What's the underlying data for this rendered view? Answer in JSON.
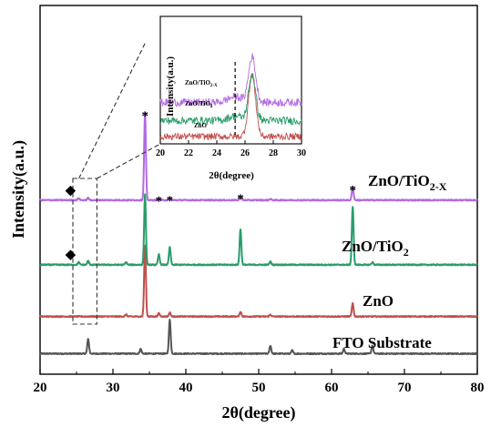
{
  "chart_data": [
    {
      "type": "line",
      "xlabel": "2θ(degree)",
      "ylabel": "Intensity(a.u.)",
      "xlim": [
        20,
        80
      ],
      "xticks": [
        20,
        30,
        40,
        50,
        60,
        70,
        80
      ],
      "grid": false,
      "series": [
        {
          "name": "FTO Substrate",
          "color": "#555555",
          "offset": 0.0,
          "baseline": 1.0,
          "peaks": [
            [
              26.6,
              4.5
            ],
            [
              33.8,
              1.5
            ],
            [
              37.8,
              10.5
            ],
            [
              51.6,
              2.5
            ],
            [
              54.6,
              1.0
            ],
            [
              61.7,
              1.5
            ],
            [
              65.6,
              2.5
            ]
          ]
        },
        {
          "name": "ZnO",
          "color": "#c0504d",
          "offset": 12.0,
          "baseline": 0.5,
          "peaks": [
            [
              31.8,
              0.6
            ],
            [
              34.4,
              22.0
            ],
            [
              36.3,
              1.0
            ],
            [
              37.8,
              1.2
            ],
            [
              47.5,
              1.5
            ],
            [
              51.6,
              0.6
            ],
            [
              62.9,
              4.0
            ]
          ]
        },
        {
          "name": "ZnO/TiO2",
          "color": "#2a9d6a",
          "offset": 28.0,
          "baseline": 0.5,
          "peaks": [
            [
              25.3,
              0.8
            ],
            [
              26.6,
              1.2
            ],
            [
              31.8,
              0.8
            ],
            [
              34.4,
              22.0
            ],
            [
              36.3,
              3.2
            ],
            [
              37.8,
              5.5
            ],
            [
              47.5,
              11.0
            ],
            [
              51.6,
              1.0
            ],
            [
              62.9,
              18.0
            ],
            [
              65.6,
              0.8
            ]
          ]
        },
        {
          "name": "ZnO/TiO2-X",
          "color": "#b36ae2",
          "offset": 48.0,
          "baseline": 0.5,
          "peaks": [
            [
              25.3,
              0.6
            ],
            [
              26.6,
              0.7
            ],
            [
              34.4,
              27.0
            ],
            [
              36.3,
              0.6
            ],
            [
              37.8,
              0.8
            ],
            [
              47.5,
              1.3
            ],
            [
              51.6,
              0.4
            ],
            [
              62.9,
              4.0
            ]
          ]
        }
      ],
      "annotations": [
        {
          "symbol": "◆",
          "x": 25.3,
          "series": "ZnO/TiO2-X"
        },
        {
          "symbol": "◆",
          "x": 25.3,
          "series": "ZnO/TiO2"
        },
        {
          "symbol": "*",
          "x": 34.4,
          "series": "ZnO/TiO2-X"
        },
        {
          "symbol": "*",
          "x": 36.3,
          "series": "ZnO/TiO2-X"
        },
        {
          "symbol": "*",
          "x": 37.8,
          "series": "ZnO/TiO2-X"
        },
        {
          "symbol": "*",
          "x": 47.5,
          "series": "ZnO/TiO2-X"
        },
        {
          "symbol": "*",
          "x": 62.9,
          "series": "ZnO/TiO2-X"
        }
      ],
      "zoom_box_x": [
        24.5,
        27.8
      ]
    },
    {
      "type": "line",
      "xlabel": "2θ(degree)",
      "ylabel": "Intensity(a.u.)",
      "xlim": [
        20,
        30
      ],
      "xticks": [
        20,
        22,
        24,
        26,
        28,
        30
      ],
      "reference_line_x": 25.3,
      "series": [
        {
          "name": "ZnO",
          "color": "#c0504d",
          "offset": 0,
          "peaks": [
            [
              26.5,
              55
            ]
          ],
          "noise": 3
        },
        {
          "name": "ZnO/TiO2",
          "color": "#2a9d6a",
          "offset": 14,
          "peaks": [
            [
              25.3,
              4
            ],
            [
              26.5,
              40
            ]
          ],
          "noise": 3.5
        },
        {
          "name": "ZnO/TiO2-X",
          "color": "#b36ae2",
          "offset": 30,
          "peaks": [
            [
              25.3,
              5
            ],
            [
              26.5,
              40
            ]
          ],
          "noise": 3.5
        }
      ]
    }
  ],
  "labels": {
    "fto": "FTO Substrate",
    "zno": "ZnO",
    "znotio2_main": "ZnO/TiO",
    "znotio2_sub": "2",
    "znotio2x_main": "ZnO/TiO",
    "znotio2x_sub": "2-X",
    "inset_zno": "ZnO",
    "inset_znotio2_main": "ZnO/TiO",
    "inset_znotio2_sub": "2",
    "inset_znotio2x_main": "ZnO/TiO",
    "inset_znotio2x_sub": "2-X"
  }
}
